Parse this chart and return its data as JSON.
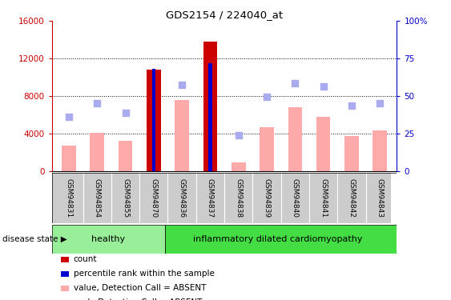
{
  "title": "GDS2154 / 224040_at",
  "samples": [
    "GSM94831",
    "GSM94854",
    "GSM94855",
    "GSM94870",
    "GSM94836",
    "GSM94837",
    "GSM94838",
    "GSM94839",
    "GSM94840",
    "GSM94841",
    "GSM94842",
    "GSM94843"
  ],
  "count_values": [
    2700,
    4100,
    3200,
    10800,
    7600,
    13800,
    900,
    4700,
    6800,
    5800,
    3700,
    4300
  ],
  "count_is_red": [
    false,
    false,
    false,
    true,
    false,
    true,
    false,
    false,
    false,
    false,
    false,
    false
  ],
  "percentile_values": [
    null,
    null,
    null,
    68,
    null,
    72,
    null,
    null,
    null,
    null,
    null,
    null
  ],
  "rank_scatter": [
    5800,
    7200,
    6200,
    null,
    9200,
    null,
    3800,
    7900,
    9400,
    9000,
    7000,
    7200
  ],
  "healthy_count": 4,
  "disease_label": "inflammatory dilated cardiomyopathy",
  "healthy_label": "healthy",
  "disease_state_label": "disease state",
  "left_axis_color": "#cc0000",
  "right_axis_color": "#0000cc",
  "ylim_left": [
    0,
    16000
  ],
  "ylim_right": [
    0,
    100
  ],
  "yticks_left": [
    0,
    4000,
    8000,
    12000,
    16000
  ],
  "yticks_right": [
    0,
    25,
    50,
    75,
    100
  ],
  "bar_red_color": "#cc0000",
  "bar_pink_color": "#ffaaaa",
  "scatter_blue_color": "#aaaaee",
  "scatter_dark_blue": "#0000cc",
  "healthy_bg": "#99ee99",
  "disease_bg": "#44dd44",
  "label_bg": "#cccccc",
  "grid_color": "black",
  "legend_items": [
    "count",
    "percentile rank within the sample",
    "value, Detection Call = ABSENT",
    "rank, Detection Call = ABSENT"
  ],
  "legend_colors": [
    "#cc0000",
    "#0000cc",
    "#ffaaaa",
    "#aaaaee"
  ],
  "fig_width": 5.63,
  "fig_height": 3.75,
  "dpi": 100
}
